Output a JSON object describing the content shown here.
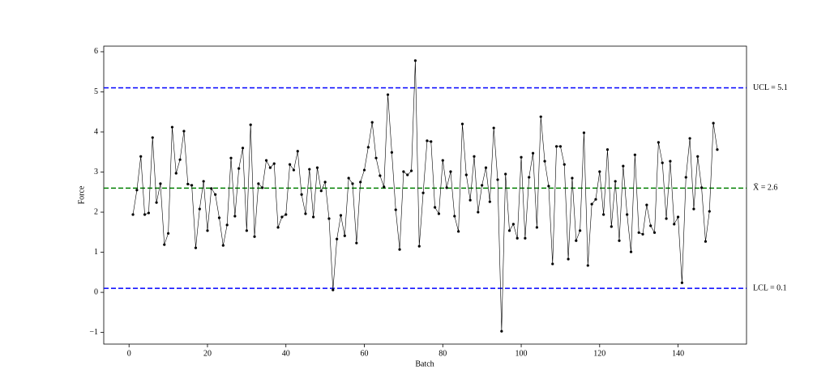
{
  "chart_data": {
    "type": "line",
    "xlabel": "Batch",
    "ylabel": "Force",
    "x": [
      1,
      2,
      3,
      4,
      5,
      6,
      7,
      8,
      9,
      10,
      11,
      12,
      13,
      14,
      15,
      16,
      17,
      18,
      19,
      20,
      21,
      22,
      23,
      24,
      25,
      26,
      27,
      28,
      29,
      30,
      31,
      32,
      33,
      34,
      35,
      36,
      37,
      38,
      39,
      40,
      41,
      42,
      43,
      44,
      45,
      46,
      47,
      48,
      49,
      50,
      51,
      52,
      53,
      54,
      55,
      56,
      57,
      58,
      59,
      60,
      61,
      62,
      63,
      64,
      65,
      66,
      67,
      68,
      69,
      70,
      71,
      72,
      73,
      74,
      75,
      76,
      77,
      78,
      79,
      80,
      81,
      82,
      83,
      84,
      85,
      86,
      87,
      88,
      89,
      90,
      91,
      92,
      93,
      94,
      95,
      96,
      97,
      98,
      99,
      100,
      101,
      102,
      103,
      104,
      105,
      106,
      107,
      108,
      109,
      110,
      111,
      112,
      113,
      114,
      115,
      116,
      117,
      118,
      119,
      120,
      121,
      122,
      123,
      124,
      125,
      126,
      127,
      128,
      129,
      130,
      131,
      132,
      133,
      134,
      135,
      136,
      137,
      138,
      139,
      140,
      141,
      142,
      143,
      144,
      145,
      146,
      147,
      148,
      149,
      150
    ],
    "series": [
      {
        "color": "#000000",
        "values": [
          1.94,
          2.55,
          3.39,
          1.94,
          1.98,
          3.86,
          2.24,
          2.71,
          1.19,
          1.47,
          4.12,
          2.97,
          3.31,
          4.02,
          2.7,
          2.67,
          1.11,
          2.08,
          2.77,
          1.54,
          2.59,
          2.44,
          1.86,
          1.17,
          1.68,
          3.35,
          1.9,
          3.09,
          3.6,
          1.54,
          4.18,
          1.39,
          2.71,
          2.61,
          3.29,
          3.11,
          3.21,
          1.62,
          1.88,
          1.94,
          3.19,
          3.05,
          3.52,
          2.44,
          1.96,
          3.07,
          1.88,
          3.11,
          2.53,
          2.75,
          1.84,
          0.06,
          1.33,
          1.92,
          1.41,
          2.85,
          2.71,
          1.23,
          2.75,
          3.05,
          3.62,
          4.24,
          3.35,
          2.91,
          2.63,
          4.93,
          3.49,
          2.06,
          1.07,
          3.01,
          2.93,
          3.03,
          5.78,
          1.15,
          2.48,
          3.78,
          3.76,
          2.12,
          1.96,
          3.29,
          2.61,
          3.01,
          1.9,
          1.52,
          4.2,
          2.93,
          2.3,
          3.39,
          2.0,
          2.67,
          3.11,
          2.26,
          4.1,
          2.81,
          -0.97,
          2.95,
          1.54,
          1.7,
          1.35,
          3.37,
          1.35,
          2.87,
          3.47,
          1.62,
          4.38,
          3.27,
          2.65,
          0.71,
          3.64,
          3.64,
          3.19,
          0.83,
          2.85,
          1.29,
          1.54,
          3.98,
          0.67,
          2.2,
          2.32,
          3.01,
          1.94,
          3.56,
          1.64,
          2.77,
          1.29,
          3.15,
          1.94,
          1.01,
          3.43,
          1.49,
          1.45,
          2.18,
          1.66,
          1.49,
          3.74,
          3.23,
          1.84,
          3.27,
          1.7,
          1.88,
          0.24,
          2.87,
          3.84,
          2.08,
          3.39,
          2.61,
          1.27,
          2.02,
          4.22,
          3.56
        ]
      }
    ],
    "control_lines": [
      {
        "label": "UCL = 5.1",
        "value": 5.1,
        "color": "#0000ff"
      },
      {
        "label": "X̄ = 2.6",
        "value": 2.6,
        "color": "#008000"
      },
      {
        "label": "LCL = 0.1",
        "value": 0.1,
        "color": "#0000ff"
      }
    ],
    "xlim": [
      -6.45,
      157.45
    ],
    "ylim": [
      -1.29,
      6.14
    ],
    "xticks": [
      0,
      20,
      40,
      60,
      80,
      100,
      120,
      140
    ],
    "yticks": [
      {
        "value": -1,
        "label": "−1"
      },
      0,
      1,
      2,
      3,
      4,
      5,
      6
    ]
  }
}
